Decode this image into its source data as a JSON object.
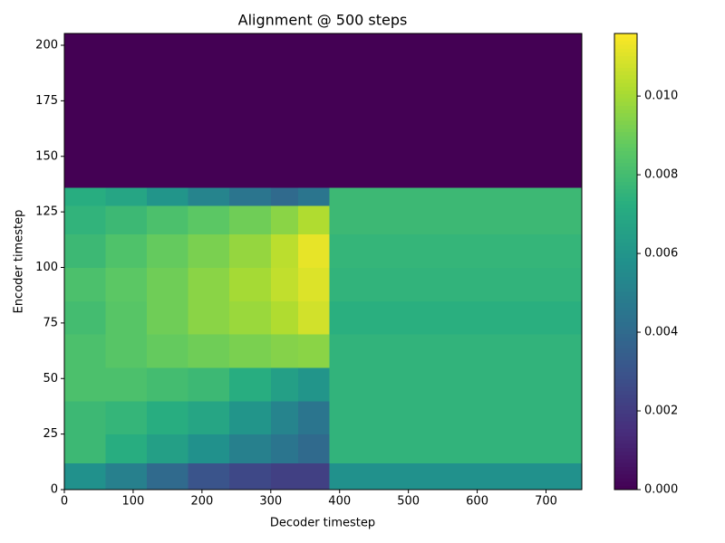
{
  "chart_data": {
    "type": "heatmap",
    "title": "Alignment @ 500 steps",
    "xlabel": "Decoder timestep",
    "ylabel": "Encoder timestep",
    "colormap": "viridis",
    "x_edges": [
      0,
      60,
      120,
      180,
      240,
      300,
      340,
      385,
      500,
      600,
      700,
      752
    ],
    "y_edges": [
      0,
      12,
      25,
      40,
      55,
      70,
      85,
      100,
      115,
      128,
      136,
      205
    ],
    "values": [
      [
        0.0058,
        0.005,
        0.004,
        0.003,
        0.0025,
        0.0022,
        0.0022,
        0.0058,
        0.0058,
        0.0058,
        0.0058
      ],
      [
        0.0078,
        0.0072,
        0.0065,
        0.0058,
        0.005,
        0.0045,
        0.004,
        0.0075,
        0.0075,
        0.0075,
        0.0075
      ],
      [
        0.0078,
        0.0076,
        0.0072,
        0.0068,
        0.006,
        0.0052,
        0.0045,
        0.0075,
        0.0075,
        0.0075,
        0.0075
      ],
      [
        0.0082,
        0.0082,
        0.008,
        0.0078,
        0.0072,
        0.0065,
        0.006,
        0.0075,
        0.0075,
        0.0075,
        0.0075
      ],
      [
        0.0082,
        0.0085,
        0.0088,
        0.009,
        0.0092,
        0.0094,
        0.0095,
        0.0075,
        0.0075,
        0.0075,
        0.0075
      ],
      [
        0.008,
        0.0085,
        0.009,
        0.0095,
        0.0098,
        0.0102,
        0.0108,
        0.0073,
        0.0073,
        0.0073,
        0.0073
      ],
      [
        0.0082,
        0.0086,
        0.009,
        0.0095,
        0.01,
        0.0105,
        0.011,
        0.0075,
        0.0075,
        0.0075,
        0.0075
      ],
      [
        0.0078,
        0.0083,
        0.0088,
        0.0092,
        0.0097,
        0.0104,
        0.0112,
        0.0076,
        0.0076,
        0.0076,
        0.0076
      ],
      [
        0.0075,
        0.0078,
        0.0082,
        0.0086,
        0.009,
        0.0095,
        0.0102,
        0.0078,
        0.0078,
        0.0078,
        0.0078
      ],
      [
        0.0072,
        0.0068,
        0.006,
        0.0052,
        0.0045,
        0.004,
        0.0045,
        0.0078,
        0.0078,
        0.0078,
        0.0078
      ],
      [
        0,
        0,
        0,
        0,
        0,
        0,
        0,
        0,
        0,
        0,
        0
      ]
    ],
    "xlim": [
      0,
      752
    ],
    "ylim": [
      0,
      205.3
    ],
    "xticks": [
      0,
      100,
      200,
      300,
      400,
      500,
      600,
      700
    ],
    "yticks": [
      0,
      25,
      50,
      75,
      100,
      125,
      150,
      175,
      200
    ],
    "clim": [
      0,
      0.01159
    ],
    "cticks": [
      {
        "value": 0,
        "label": "0.000"
      },
      {
        "value": 0.002,
        "label": "0.002"
      },
      {
        "value": 0.004,
        "label": "0.004"
      },
      {
        "value": 0.006,
        "label": "0.006"
      },
      {
        "value": 0.008,
        "label": "0.008"
      },
      {
        "value": 0.01,
        "label": "0.010"
      }
    ]
  }
}
